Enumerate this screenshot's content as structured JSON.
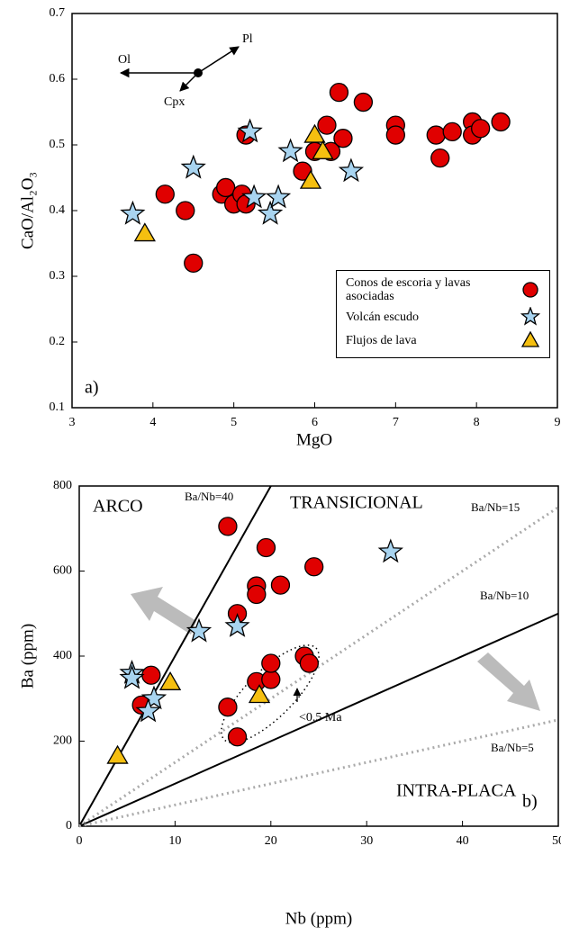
{
  "chart_data": [
    {
      "type": "scatter",
      "x_label": "MgO",
      "y_label": "CaO/Al₂O₃",
      "xlim": [
        3,
        9
      ],
      "ylim": [
        0.1,
        0.7
      ],
      "xticks": [
        3,
        4,
        5,
        6,
        7,
        8,
        9
      ],
      "yticks": [
        0.1,
        0.2,
        0.3,
        0.4,
        0.5,
        0.6,
        0.7
      ],
      "annotations": [
        "Ol",
        "Pl",
        "Cpx",
        "a)"
      ],
      "series": [
        {
          "name": "Conos de escoria y lavas asociadas",
          "marker": "circle",
          "color": "#e00000",
          "x": [
            4.15,
            4.4,
            4.5,
            4.85,
            4.9,
            5.0,
            5.1,
            5.15,
            5.15,
            5.85,
            6.0,
            6.15,
            6.2,
            6.3,
            6.35,
            6.6,
            7.0,
            7.0,
            7.5,
            7.55,
            7.7,
            7.95,
            7.95,
            8.05,
            8.3
          ],
          "values": [
            0.425,
            0.4,
            0.32,
            0.425,
            0.435,
            0.41,
            0.425,
            0.41,
            0.515,
            0.46,
            0.49,
            0.53,
            0.49,
            0.58,
            0.51,
            0.565,
            0.53,
            0.515,
            0.515,
            0.48,
            0.52,
            0.535,
            0.515,
            0.525,
            0.535
          ]
        },
        {
          "name": "Volcán escudo",
          "marker": "star",
          "color": "#a8d4f0",
          "x": [
            3.75,
            4.5,
            5.2,
            5.25,
            5.45,
            5.55,
            5.7,
            6.45
          ],
          "values": [
            0.395,
            0.465,
            0.52,
            0.42,
            0.395,
            0.42,
            0.49,
            0.46
          ]
        },
        {
          "name": "Flujos de lava",
          "marker": "triangle",
          "color": "#f5bf10",
          "x": [
            3.9,
            5.95,
            6.0,
            6.1
          ],
          "values": [
            0.365,
            0.445,
            0.515,
            0.49
          ]
        }
      ]
    },
    {
      "type": "scatter",
      "x_label": "Nb (ppm)",
      "y_label": "Ba (ppm)",
      "xlim": [
        0,
        50
      ],
      "ylim": [
        0,
        800
      ],
      "xticks": [
        0,
        10,
        20,
        30,
        40,
        50
      ],
      "yticks": [
        0,
        200,
        400,
        600,
        800
      ],
      "reference_lines": [
        {
          "label": "Ba/Nb=40",
          "slope": 40,
          "style": "solid"
        },
        {
          "label": "Ba/Nb=15",
          "slope": 15,
          "style": "dotted"
        },
        {
          "label": "Ba/Nb=10",
          "slope": 10,
          "style": "solid"
        },
        {
          "label": "Ba/Nb=5",
          "slope": 5,
          "style": "dotted"
        }
      ],
      "annotations": [
        "ARCO",
        "TRANSICIONAL",
        "INTRA-PLACA",
        "<0.5 Ma",
        "b)"
      ],
      "series": [
        {
          "marker": "circle",
          "color": "#e00000",
          "x": [
            15.5,
            19.5,
            18.5,
            18.5,
            21,
            24.5,
            16.5,
            7.5,
            6.5,
            15.5,
            16.5,
            18.5,
            20,
            20,
            23.5,
            24
          ],
          "values": [
            705,
            655,
            565,
            545,
            567,
            610,
            500,
            355,
            285,
            280,
            210,
            340,
            345,
            383,
            400,
            383
          ]
        },
        {
          "marker": "star",
          "color": "#a8d4f0",
          "x": [
            32.5,
            12.5,
            16.5,
            5.5,
            5.5,
            7.8,
            7.2
          ],
          "values": [
            645,
            458,
            470,
            360,
            348,
            300,
            270
          ]
        },
        {
          "marker": "triangle",
          "color": "#f5bf10",
          "x": [
            4,
            9.5,
            18.8
          ],
          "values": [
            165,
            338,
            308
          ]
        }
      ]
    }
  ]
}
